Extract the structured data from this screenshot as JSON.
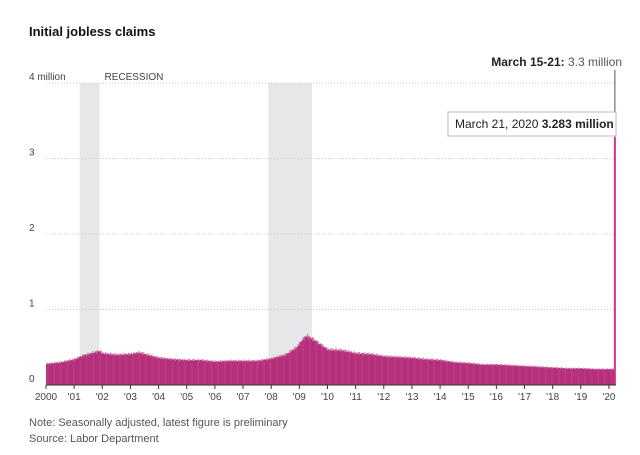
{
  "chart_data": {
    "type": "bar",
    "title": "Initial jobless claims",
    "xlabel": "",
    "ylabel": "",
    "ylim": [
      0,
      4
    ],
    "y_ticks": [
      {
        "value": 4,
        "label": "4 million"
      },
      {
        "value": 3,
        "label": "3"
      },
      {
        "value": 2,
        "label": "2"
      },
      {
        "value": 1,
        "label": "1"
      },
      {
        "value": 0,
        "label": "0"
      }
    ],
    "x_range": [
      2000.0,
      2020.25
    ],
    "x_ticks": [
      {
        "value": 2000,
        "label": "2000"
      },
      {
        "value": 2001,
        "label": "'01"
      },
      {
        "value": 2002,
        "label": "'02"
      },
      {
        "value": 2003,
        "label": "'03"
      },
      {
        "value": 2004,
        "label": "'04"
      },
      {
        "value": 2005,
        "label": "'05"
      },
      {
        "value": 2006,
        "label": "'06"
      },
      {
        "value": 2007,
        "label": "'07"
      },
      {
        "value": 2008,
        "label": "'08"
      },
      {
        "value": 2009,
        "label": "'09"
      },
      {
        "value": 2010,
        "label": "'10"
      },
      {
        "value": 2011,
        "label": "'11"
      },
      {
        "value": 2012,
        "label": "'12"
      },
      {
        "value": 2013,
        "label": "'13"
      },
      {
        "value": 2014,
        "label": "'14"
      },
      {
        "value": 2015,
        "label": "'15"
      },
      {
        "value": 2016,
        "label": "'16"
      },
      {
        "value": 2017,
        "label": "'17"
      },
      {
        "value": 2018,
        "label": "'18"
      },
      {
        "value": 2019,
        "label": "'19"
      },
      {
        "value": 2020,
        "label": "'20"
      }
    ],
    "recessions": [
      {
        "start": 2001.2,
        "end": 2001.9
      },
      {
        "start": 2007.9,
        "end": 2009.45
      }
    ],
    "recession_label": "RECESSION",
    "series": [
      {
        "color": "#b5307b",
        "points": [
          [
            2000.0,
            0.28
          ],
          [
            2000.5,
            0.3
          ],
          [
            2001.0,
            0.34
          ],
          [
            2001.3,
            0.39
          ],
          [
            2001.7,
            0.43
          ],
          [
            2001.9,
            0.45
          ],
          [
            2002.0,
            0.42
          ],
          [
            2002.5,
            0.4
          ],
          [
            2003.0,
            0.41
          ],
          [
            2003.3,
            0.43
          ],
          [
            2003.6,
            0.4
          ],
          [
            2004.0,
            0.36
          ],
          [
            2004.5,
            0.34
          ],
          [
            2005.0,
            0.33
          ],
          [
            2005.5,
            0.33
          ],
          [
            2006.0,
            0.31
          ],
          [
            2006.5,
            0.32
          ],
          [
            2007.0,
            0.32
          ],
          [
            2007.5,
            0.32
          ],
          [
            2008.0,
            0.35
          ],
          [
            2008.5,
            0.4
          ],
          [
            2008.9,
            0.5
          ],
          [
            2009.1,
            0.6
          ],
          [
            2009.25,
            0.65
          ],
          [
            2009.5,
            0.6
          ],
          [
            2010.0,
            0.47
          ],
          [
            2010.5,
            0.46
          ],
          [
            2011.0,
            0.42
          ],
          [
            2011.5,
            0.41
          ],
          [
            2012.0,
            0.38
          ],
          [
            2012.5,
            0.37
          ],
          [
            2013.0,
            0.36
          ],
          [
            2013.5,
            0.34
          ],
          [
            2014.0,
            0.33
          ],
          [
            2014.5,
            0.3
          ],
          [
            2015.0,
            0.29
          ],
          [
            2015.5,
            0.27
          ],
          [
            2016.0,
            0.27
          ],
          [
            2016.5,
            0.26
          ],
          [
            2017.0,
            0.25
          ],
          [
            2017.5,
            0.24
          ],
          [
            2018.0,
            0.23
          ],
          [
            2018.5,
            0.22
          ],
          [
            2019.0,
            0.22
          ],
          [
            2019.5,
            0.21
          ],
          [
            2020.0,
            0.21
          ],
          [
            2020.17,
            0.21
          ],
          [
            2020.19,
            0.28
          ],
          [
            2020.21,
            3.283
          ]
        ]
      }
    ],
    "annotations": [
      {
        "bold": "March 15-21:",
        "text": " 3.3 million"
      },
      {
        "text": "March 21, 2020",
        "bold": "3.283 million"
      }
    ],
    "grid": true,
    "legend": "none"
  },
  "footer": {
    "note": "Note: Seasonally adjusted, latest figure is preliminary",
    "source": "Source: Labor Department"
  }
}
